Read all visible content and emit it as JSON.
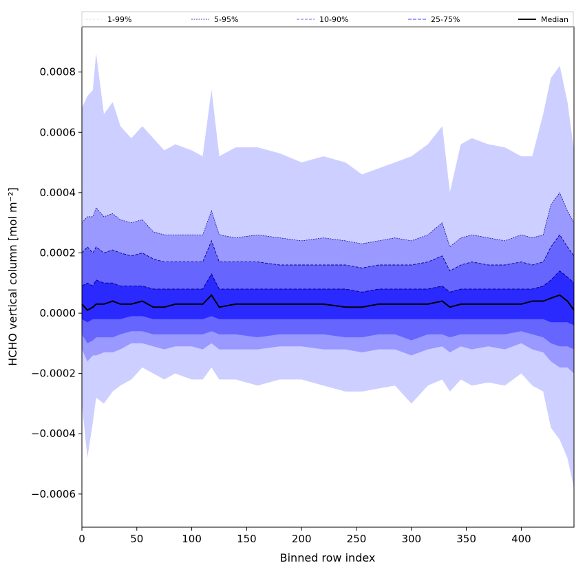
{
  "chart_data": {
    "type": "area",
    "xlabel": "Binned row index",
    "ylabel": "HCHO vertical column [mol m⁻²]",
    "xlim": [
      0,
      448
    ],
    "ylim": [
      -0.00071,
      0.00095
    ],
    "x_ticks": [
      0,
      50,
      100,
      150,
      200,
      250,
      300,
      350,
      400
    ],
    "x_tick_labels": [
      "0",
      "50",
      "100",
      "150",
      "200",
      "250",
      "300",
      "350",
      "400"
    ],
    "y_ticks": [
      -0.0006,
      -0.0004,
      -0.0002,
      0.0,
      0.0002,
      0.0004,
      0.0006,
      0.0008
    ],
    "y_tick_labels": [
      "−0.0006",
      "−0.0004",
      "−0.0002",
      "0.0000",
      "0.0002",
      "0.0004",
      "0.0006",
      "0.0008"
    ],
    "grid": false,
    "legend_position": "top, spanning full width",
    "colors": {
      "p1_99": "#cccfff",
      "p5_95": "#9999ff",
      "p10_90": "#6666ff",
      "p25_75": "#2a2aff",
      "median": "#000000",
      "edge": "#00008b"
    },
    "x": [
      0,
      5,
      10,
      13,
      20,
      28,
      35,
      45,
      55,
      65,
      75,
      85,
      100,
      110,
      118,
      125,
      140,
      160,
      180,
      200,
      220,
      240,
      255,
      270,
      285,
      300,
      315,
      328,
      335,
      345,
      355,
      370,
      385,
      400,
      410,
      420,
      427,
      435,
      442,
      448
    ],
    "series": [
      {
        "name": "1-99%",
        "upper": [
          0.00068,
          0.00072,
          0.00074,
          0.00086,
          0.00066,
          0.0007,
          0.00062,
          0.00058,
          0.00062,
          0.00058,
          0.00054,
          0.00056,
          0.00054,
          0.00052,
          0.00074,
          0.00052,
          0.00055,
          0.00055,
          0.00053,
          0.0005,
          0.00052,
          0.0005,
          0.00046,
          0.00048,
          0.0005,
          0.00052,
          0.00056,
          0.00062,
          0.0004,
          0.00056,
          0.00058,
          0.00056,
          0.00055,
          0.00052,
          0.00052,
          0.00066,
          0.00078,
          0.00082,
          0.0007,
          0.00054
        ],
        "lower": [
          -0.0003,
          -0.00048,
          -0.00036,
          -0.00028,
          -0.0003,
          -0.00026,
          -0.00024,
          -0.00022,
          -0.00018,
          -0.0002,
          -0.00022,
          -0.0002,
          -0.00022,
          -0.00022,
          -0.00018,
          -0.00022,
          -0.00022,
          -0.00024,
          -0.00022,
          -0.00022,
          -0.00024,
          -0.00026,
          -0.00026,
          -0.00025,
          -0.00024,
          -0.0003,
          -0.00024,
          -0.00022,
          -0.00026,
          -0.00022,
          -0.00024,
          -0.00023,
          -0.00024,
          -0.0002,
          -0.00024,
          -0.00026,
          -0.00038,
          -0.00042,
          -0.00048,
          -0.00058
        ]
      },
      {
        "name": "5-95%",
        "upper": [
          0.0003,
          0.00032,
          0.00032,
          0.00035,
          0.00032,
          0.00033,
          0.00031,
          0.0003,
          0.00031,
          0.00027,
          0.00026,
          0.00026,
          0.00026,
          0.00026,
          0.00034,
          0.00026,
          0.00025,
          0.00026,
          0.00025,
          0.00024,
          0.00025,
          0.00024,
          0.00023,
          0.00024,
          0.00025,
          0.00024,
          0.00026,
          0.0003,
          0.00022,
          0.00025,
          0.00026,
          0.00025,
          0.00024,
          0.00026,
          0.00025,
          0.00026,
          0.00036,
          0.0004,
          0.00034,
          0.0003
        ],
        "lower": [
          -0.00012,
          -0.00016,
          -0.00014,
          -0.00014,
          -0.00013,
          -0.00013,
          -0.00012,
          -0.0001,
          -0.0001,
          -0.00011,
          -0.00012,
          -0.00011,
          -0.00011,
          -0.00012,
          -0.0001,
          -0.00012,
          -0.00012,
          -0.00012,
          -0.00011,
          -0.00011,
          -0.00012,
          -0.00012,
          -0.00013,
          -0.00012,
          -0.00012,
          -0.00014,
          -0.00012,
          -0.00011,
          -0.00013,
          -0.00011,
          -0.00012,
          -0.00011,
          -0.00012,
          -0.0001,
          -0.00012,
          -0.00013,
          -0.00016,
          -0.00018,
          -0.00018,
          -0.0002
        ]
      },
      {
        "name": "10-90%",
        "upper": [
          0.0002,
          0.00022,
          0.0002,
          0.00022,
          0.0002,
          0.00021,
          0.0002,
          0.00019,
          0.0002,
          0.00018,
          0.00017,
          0.00017,
          0.00017,
          0.00017,
          0.00024,
          0.00017,
          0.00017,
          0.00017,
          0.00016,
          0.00016,
          0.00016,
          0.00016,
          0.00015,
          0.00016,
          0.00016,
          0.00016,
          0.00017,
          0.00019,
          0.00014,
          0.00016,
          0.00017,
          0.00016,
          0.00016,
          0.00017,
          0.00016,
          0.00017,
          0.00022,
          0.00026,
          0.00022,
          0.00019
        ],
        "lower": [
          -7e-05,
          -0.0001,
          -9e-05,
          -8e-05,
          -8e-05,
          -8e-05,
          -7e-05,
          -6e-05,
          -6e-05,
          -7e-05,
          -7e-05,
          -7e-05,
          -7e-05,
          -7e-05,
          -6e-05,
          -7e-05,
          -7e-05,
          -8e-05,
          -7e-05,
          -7e-05,
          -7e-05,
          -8e-05,
          -8e-05,
          -7e-05,
          -7e-05,
          -9e-05,
          -7e-05,
          -7e-05,
          -8e-05,
          -7e-05,
          -7e-05,
          -7e-05,
          -7e-05,
          -6e-05,
          -7e-05,
          -8e-05,
          -0.0001,
          -0.00011,
          -0.00011,
          -0.00012
        ]
      },
      {
        "name": "25-75%",
        "upper": [
          9e-05,
          0.0001,
          9e-05,
          0.00011,
          0.0001,
          0.0001,
          9e-05,
          9e-05,
          9e-05,
          8e-05,
          8e-05,
          8e-05,
          8e-05,
          8e-05,
          0.00013,
          8e-05,
          8e-05,
          8e-05,
          8e-05,
          8e-05,
          8e-05,
          8e-05,
          7e-05,
          8e-05,
          8e-05,
          8e-05,
          8e-05,
          9e-05,
          7e-05,
          8e-05,
          8e-05,
          8e-05,
          8e-05,
          8e-05,
          8e-05,
          9e-05,
          0.00011,
          0.00014,
          0.00012,
          0.0001
        ],
        "lower": [
          -2e-05,
          -3e-05,
          -2e-05,
          -2e-05,
          -2e-05,
          -2e-05,
          -2e-05,
          -1e-05,
          -1e-05,
          -2e-05,
          -2e-05,
          -2e-05,
          -2e-05,
          -2e-05,
          -1e-05,
          -2e-05,
          -2e-05,
          -2e-05,
          -2e-05,
          -2e-05,
          -2e-05,
          -2e-05,
          -2e-05,
          -2e-05,
          -2e-05,
          -2e-05,
          -2e-05,
          -2e-05,
          -2e-05,
          -2e-05,
          -2e-05,
          -2e-05,
          -2e-05,
          -2e-05,
          -2e-05,
          -2e-05,
          -3e-05,
          -3e-05,
          -3e-05,
          -4e-05
        ]
      },
      {
        "name": "Median",
        "values": [
          3e-05,
          1e-05,
          2e-05,
          3e-05,
          3e-05,
          4e-05,
          3e-05,
          3e-05,
          4e-05,
          2e-05,
          2e-05,
          3e-05,
          3e-05,
          3e-05,
          6e-05,
          2e-05,
          3e-05,
          3e-05,
          3e-05,
          3e-05,
          3e-05,
          2e-05,
          2e-05,
          3e-05,
          3e-05,
          3e-05,
          3e-05,
          4e-05,
          2e-05,
          3e-05,
          3e-05,
          3e-05,
          3e-05,
          3e-05,
          4e-05,
          4e-05,
          5e-05,
          6e-05,
          4e-05,
          1e-05
        ]
      }
    ]
  }
}
